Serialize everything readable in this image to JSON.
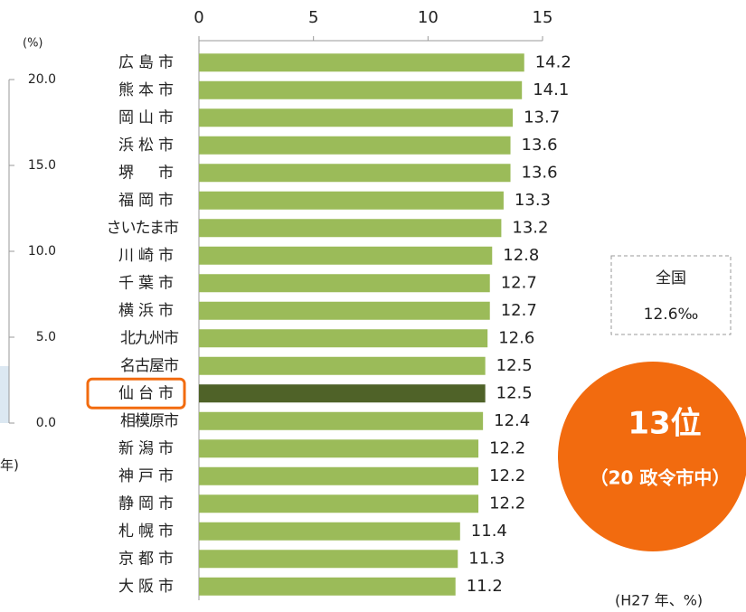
{
  "chart_data": [
    {
      "type": "barh",
      "categories": [
        "広島市",
        "熊本市",
        "岡山市",
        "浜松市",
        "堺　市",
        "福岡市",
        "さいたま市",
        "川崎市",
        "千葉市",
        "横浜市",
        "北九州市",
        "名古屋市",
        "仙台市",
        "相模原市",
        "新潟市",
        "神戸市",
        "静岡市",
        "札幌市",
        "京都市",
        "大阪市"
      ],
      "values": [
        14.2,
        14.1,
        13.7,
        13.6,
        13.6,
        13.3,
        13.2,
        12.8,
        12.7,
        12.7,
        12.6,
        12.5,
        12.5,
        12.4,
        12.2,
        12.2,
        12.2,
        11.4,
        11.3,
        11.2
      ],
      "color": "#9bbb59",
      "highlight": 12,
      "highlight_color": "#4f6228",
      "highlight_box_color": "#f26b0f",
      "xlim": [
        0,
        15
      ],
      "xticks": [
        0,
        5,
        10,
        15
      ],
      "unit_note": "(H27 年、%)",
      "national_label": "全国",
      "national_value": "12.6‰",
      "rank_text": "13位",
      "rank_sub": "（20 政令市中）",
      "rank_color": "#f26b0f"
    },
    {
      "type": "axis-fragment",
      "ylabel": "(%)",
      "xlabel": "年)",
      "ylim": [
        0,
        20
      ],
      "yticks": [
        {
          "value": 0,
          "label": "0.0"
        },
        {
          "value": 5,
          "label": "5.0"
        },
        {
          "value": 10,
          "label": "10.0"
        },
        {
          "value": 15,
          "label": "15.0"
        },
        {
          "value": 20,
          "label": "20.0"
        }
      ]
    }
  ]
}
